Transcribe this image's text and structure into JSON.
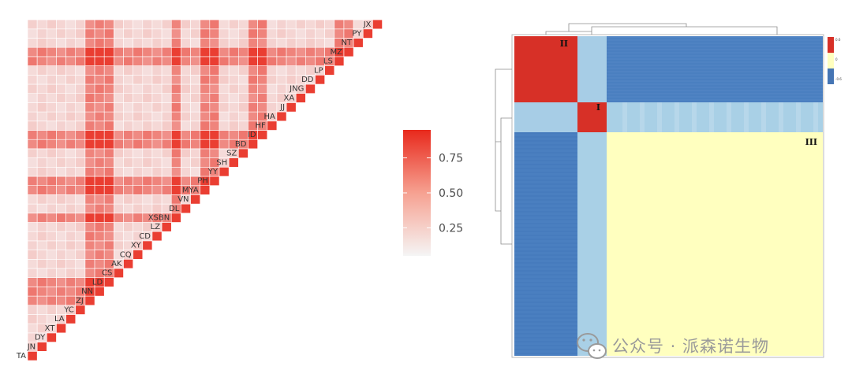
{
  "chart_data": [
    {
      "type": "heatmap",
      "shape": "lower-triangle",
      "labels": [
        "TA",
        "JN",
        "DY",
        "XT",
        "LA",
        "YC",
        "ZJ",
        "NN",
        "LD",
        "CS",
        "AK",
        "CQ",
        "XY",
        "CD",
        "LZ",
        "XSBN",
        "DL",
        "VN",
        "MYA",
        "PH",
        "YY",
        "SH",
        "SZ",
        "BD",
        "ID",
        "HF",
        "HA",
        "JJ",
        "XA",
        "JNG",
        "DD",
        "LP",
        "LS",
        "MZ",
        "NT",
        "PY",
        "JX"
      ],
      "high_correlation_labels": [
        "ZJ",
        "NN",
        "LD",
        "XSBN",
        "MYA",
        "PH",
        "BD",
        "ID",
        "LS",
        "MZ"
      ],
      "value_strong": 0.9,
      "value_medium": 0.5,
      "value_background": 0.12,
      "color_scale": {
        "low": "#f7f7f7",
        "high": "#e8291c"
      },
      "legend": {
        "ticks": [
          "0.75",
          "0.50",
          "0.25"
        ],
        "tick_values": [
          0.75,
          0.5,
          0.25
        ],
        "range": [
          0.05,
          0.95
        ]
      }
    },
    {
      "type": "heatmap",
      "shape": "clustered-square",
      "clusters": [
        {
          "label": "II",
          "color": "#d73027"
        },
        {
          "label": "I",
          "color": "#d73027"
        },
        {
          "label": "III",
          "color": "#ffffbf"
        }
      ],
      "cross_cluster_colors": {
        "II_I": "#a7cde6",
        "II_III": "#4a7fc0",
        "I_III": "#a9d0e6"
      },
      "legend": {
        "ticks": [
          "0.6",
          "0",
          "-0.6"
        ],
        "colors": [
          "#d73027",
          "#ffffbf",
          "#4575b4"
        ]
      }
    }
  ],
  "watermark": {
    "text": "公众号 · 派森诺生物"
  },
  "colors": {
    "strong_red": "#e8291c",
    "pale": "#f7f7f7",
    "cluster_red": "#d73027",
    "cluster_blue": "#4a7fc0",
    "cluster_light_blue": "#a9d0e6",
    "cluster_yellow": "#ffffbf"
  }
}
